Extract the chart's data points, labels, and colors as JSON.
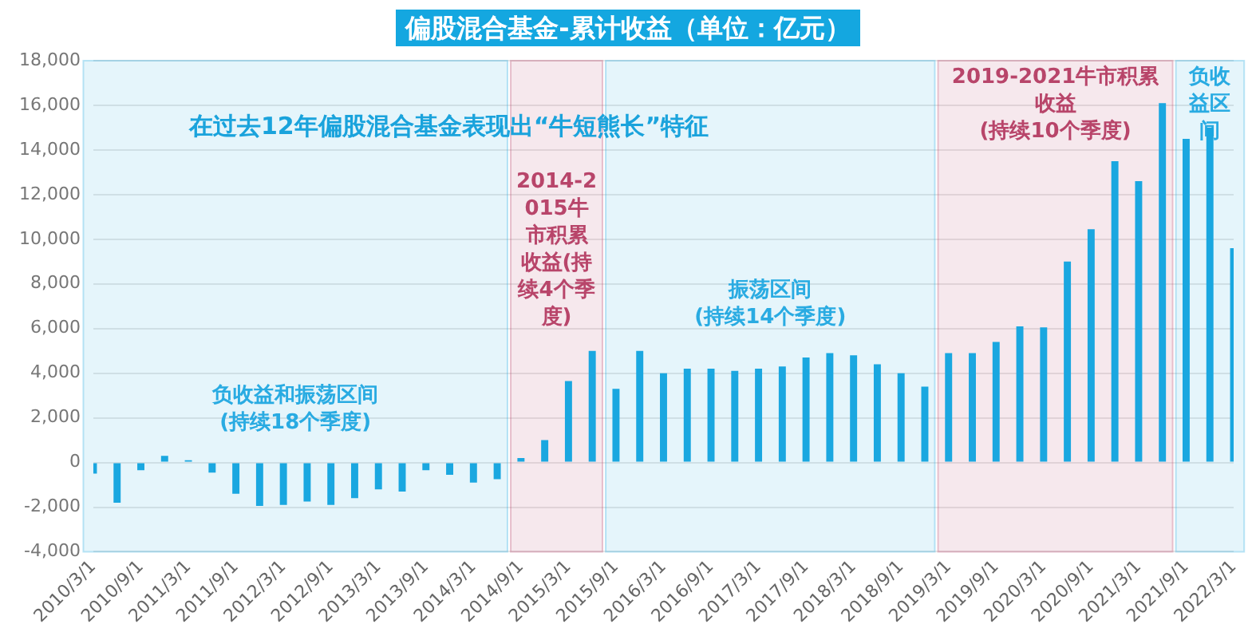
{
  "chart_data": {
    "type": "bar",
    "title": "偏股混合基金-累计收益（单位：亿元）",
    "x": [
      "2010-03-01",
      "2010-06-01",
      "2010-09-01",
      "2010-12-01",
      "2011-03-01",
      "2011-06-01",
      "2011-09-01",
      "2011-12-01",
      "2012-03-01",
      "2012-06-01",
      "2012-09-01",
      "2012-12-01",
      "2013-03-01",
      "2013-06-01",
      "2013-09-01",
      "2013-12-01",
      "2014-03-01",
      "2014-06-01",
      "2014-09-01",
      "2014-12-01",
      "2015-03-01",
      "2015-06-01",
      "2015-09-01",
      "2015-12-01",
      "2016-03-01",
      "2016-06-01",
      "2016-09-01",
      "2016-12-01",
      "2017-03-01",
      "2017-06-01",
      "2017-09-01",
      "2017-12-01",
      "2018-03-01",
      "2018-06-01",
      "2018-09-01",
      "2018-12-01",
      "2019-03-01",
      "2019-06-01",
      "2019-09-01",
      "2019-12-01",
      "2020-03-01",
      "2020-06-01",
      "2020-09-01",
      "2020-12-01",
      "2021-03-01",
      "2021-06-01",
      "2021-09-01",
      "2021-12-01",
      "2022-03-01"
    ],
    "xticks": [
      {
        "value": "2010-03-01",
        "label": "2010/3/1"
      },
      {
        "value": "2010-09-01",
        "label": "2010/9/1"
      },
      {
        "value": "2011-03-01",
        "label": "2011/3/1"
      },
      {
        "value": "2011-09-01",
        "label": "2011/9/1"
      },
      {
        "value": "2012-03-01",
        "label": "2012/3/1"
      },
      {
        "value": "2012-09-01",
        "label": "2012/9/1"
      },
      {
        "value": "2013-03-01",
        "label": "2013/3/1"
      },
      {
        "value": "2013-09-01",
        "label": "2013/9/1"
      },
      {
        "value": "2014-03-01",
        "label": "2014/3/1"
      },
      {
        "value": "2014-09-01",
        "label": "2014/9/1"
      },
      {
        "value": "2015-03-01",
        "label": "2015/3/1"
      },
      {
        "value": "2015-09-01",
        "label": "2015/9/1"
      },
      {
        "value": "2016-03-01",
        "label": "2016/3/1"
      },
      {
        "value": "2016-09-01",
        "label": "2016/9/1"
      },
      {
        "value": "2017-03-01",
        "label": "2017/3/1"
      },
      {
        "value": "2017-09-01",
        "label": "2017/9/1"
      },
      {
        "value": "2018-03-01",
        "label": "2018/3/1"
      },
      {
        "value": "2018-09-01",
        "label": "2018/9/1"
      },
      {
        "value": "2019-03-01",
        "label": "2019/3/1"
      },
      {
        "value": "2019-09-01",
        "label": "2019/9/1"
      },
      {
        "value": "2020-03-01",
        "label": "2020/3/1"
      },
      {
        "value": "2020-09-01",
        "label": "2020/9/1"
      },
      {
        "value": "2021-03-01",
        "label": "2021/3/1"
      },
      {
        "value": "2021-09-01",
        "label": "2021/9/1"
      },
      {
        "value": "2022-03-01",
        "label": "2022/3/1"
      }
    ],
    "xlim": [
      "2010-01-15",
      "2022-04-16"
    ],
    "values": [
      -500,
      -1800,
      -350,
      300,
      100,
      -450,
      -1400,
      -1950,
      -1900,
      -1750,
      -1900,
      -1600,
      -1200,
      -1300,
      -350,
      -550,
      -900,
      -750,
      200,
      1000,
      3650,
      5000,
      3300,
      5000,
      4000,
      4200,
      4200,
      4100,
      4200,
      4300,
      4700,
      4900,
      4800,
      4400,
      4000,
      3400,
      4900,
      4900,
      5400,
      6100,
      6050,
      9000,
      10450,
      13500,
      12600,
      16100,
      14500,
      15000,
      9600
    ],
    "color": "#1aa7e0",
    "ylim": [
      -4000,
      18000
    ],
    "yticks": [
      {
        "value": -4000,
        "label": "-4,000"
      },
      {
        "value": -2000,
        "label": "-2,000"
      },
      0,
      {
        "value": 2000,
        "label": "2,000"
      },
      {
        "value": 4000,
        "label": "4,000"
      },
      {
        "value": 6000,
        "label": "6,000"
      },
      {
        "value": 8000,
        "label": "8,000"
      },
      {
        "value": 10000,
        "label": "10,000"
      },
      {
        "value": 12000,
        "label": "12,000"
      },
      {
        "value": 14000,
        "label": "14,000"
      },
      {
        "value": 16000,
        "label": "16,000"
      },
      {
        "value": 18000,
        "label": "18,000"
      }
    ],
    "grid": "y",
    "annotations": [
      "在过去12年偏股混合基金表现出“牛短熊长”特征"
    ],
    "bands": [
      {
        "axis": "x",
        "from": "2010-01-15",
        "to": "2014-07-17",
        "label": "负收益和振荡区间\n(持续18个季度)",
        "color": "#29abe2"
      },
      {
        "axis": "x",
        "from": "2014-07-17",
        "to": "2015-07-17",
        "label": "2014-2015牛市积累收益(持续4个季度)",
        "color": "#b8456a"
      },
      {
        "axis": "x",
        "from": "2015-07-17",
        "to": "2019-01-14",
        "label": "振荡区间\n(持续14个季度)",
        "color": "#29abe2"
      },
      {
        "axis": "x",
        "from": "2019-01-14",
        "to": "2021-07-17",
        "label": "2019-2021牛市积累收益\n(持续10个季度)",
        "color": "#b8456a"
      },
      {
        "axis": "x",
        "from": "2021-07-17",
        "to": "2022-04-16",
        "label": "负收益区间",
        "color": "#29abe2"
      }
    ]
  }
}
